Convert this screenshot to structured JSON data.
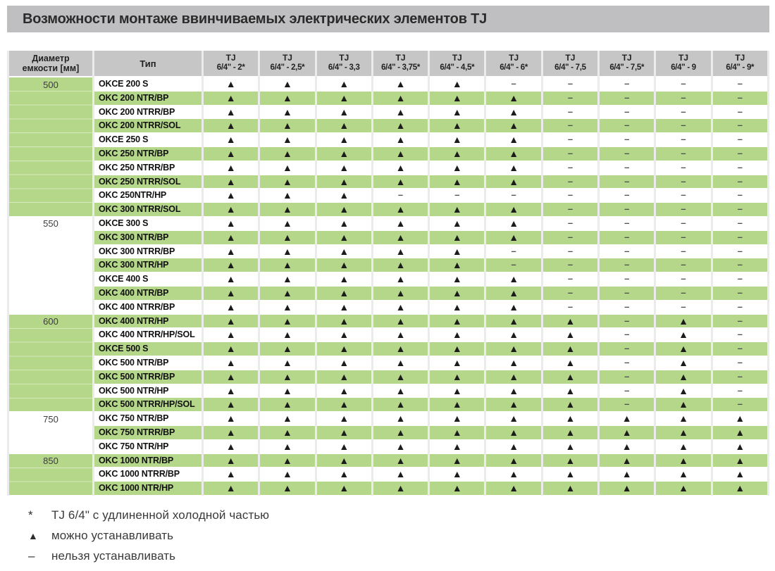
{
  "title": "Возможности монтаже ввинчиваемых электрических элементов TJ",
  "colors": {
    "row_green": "#b5d78a",
    "header_gray": "#c6c6c6",
    "title_bar_gray": "#bfbfc2",
    "triangle_black": "#1c1c1c",
    "dash_gray": "#4f4f4f"
  },
  "table": {
    "diameter_header": {
      "line1": "Диаметр",
      "line2": "емкости [мм]"
    },
    "type_header": "Тип",
    "tj_columns": [
      {
        "line1": "TJ",
        "line2": "6/4\" - 2*"
      },
      {
        "line1": "TJ",
        "line2": "6/4\" - 2,5*"
      },
      {
        "line1": "TJ",
        "line2": "6/4\" - 3,3"
      },
      {
        "line1": "TJ",
        "line2": "6/4\" - 3,75*"
      },
      {
        "line1": "TJ",
        "line2": "6/4\" - 4,5*"
      },
      {
        "line1": "TJ",
        "line2": "6/4\" - 6*"
      },
      {
        "line1": "TJ",
        "line2": "6/4\" - 7,5"
      },
      {
        "line1": "TJ",
        "line2": "6/4\" - 7,5*"
      },
      {
        "line1": "TJ",
        "line2": "6/4\" - 9"
      },
      {
        "line1": "TJ",
        "line2": "6/4\" - 9*"
      }
    ],
    "can_symbol": "▲",
    "cannot_symbol": "–",
    "groups": [
      {
        "diameter": "500",
        "green": true,
        "rows": [
          {
            "type": "OKCE 200 S",
            "cells": [
              "▲",
              "▲",
              "▲",
              "▲",
              "▲",
              "–",
              "–",
              "–",
              "–",
              "–"
            ]
          },
          {
            "type": "OKC 200 NTR/BP",
            "cells": [
              "▲",
              "▲",
              "▲",
              "▲",
              "▲",
              "▲",
              "–",
              "–",
              "–",
              "–"
            ]
          },
          {
            "type": "OKC 200 NTRR/BP",
            "cells": [
              "▲",
              "▲",
              "▲",
              "▲",
              "▲",
              "▲",
              "–",
              "–",
              "–",
              "–"
            ]
          },
          {
            "type": "OKC 200 NTRR/SOL",
            "cells": [
              "▲",
              "▲",
              "▲",
              "▲",
              "▲",
              "▲",
              "–",
              "–",
              "–",
              "–"
            ]
          },
          {
            "type": "OKCE 250 S",
            "cells": [
              "▲",
              "▲",
              "▲",
              "▲",
              "▲",
              "▲",
              "–",
              "–",
              "–",
              "–"
            ]
          },
          {
            "type": "OKC 250 NTR/BP",
            "cells": [
              "▲",
              "▲",
              "▲",
              "▲",
              "▲",
              "▲",
              "–",
              "–",
              "–",
              "–"
            ]
          },
          {
            "type": "OKC 250 NTRR/BP",
            "cells": [
              "▲",
              "▲",
              "▲",
              "▲",
              "▲",
              "▲",
              "–",
              "–",
              "–",
              "–"
            ]
          },
          {
            "type": "OKC 250 NTRR/SOL",
            "cells": [
              "▲",
              "▲",
              "▲",
              "▲",
              "▲",
              "▲",
              "–",
              "–",
              "–",
              "–"
            ]
          },
          {
            "type": "OKC 250NTR/HP",
            "cells": [
              "▲",
              "▲",
              "▲",
              "–",
              "–",
              "–",
              "–",
              "–",
              "–",
              "–"
            ]
          },
          {
            "type": "OKC 300 NTRR/SOL",
            "cells": [
              "▲",
              "▲",
              "▲",
              "▲",
              "▲",
              "▲",
              "–",
              "–",
              "–",
              "–"
            ]
          }
        ]
      },
      {
        "diameter": "550",
        "green": false,
        "rows": [
          {
            "type": "OKCE 300 S",
            "cells": [
              "▲",
              "▲",
              "▲",
              "▲",
              "▲",
              "▲",
              "–",
              "–",
              "–",
              "–"
            ]
          },
          {
            "type": "OKC 300 NTR/BP",
            "cells": [
              "▲",
              "▲",
              "▲",
              "▲",
              "▲",
              "▲",
              "–",
              "–",
              "–",
              "–"
            ]
          },
          {
            "type": "OKC 300 NTRR/BP",
            "cells": [
              "▲",
              "▲",
              "▲",
              "▲",
              "▲",
              "–",
              "–",
              "–",
              "–",
              "–"
            ]
          },
          {
            "type": "OKC 300 NTR/HP",
            "cells": [
              "▲",
              "▲",
              "▲",
              "▲",
              "▲",
              "–",
              "–",
              "–",
              "–",
              "–"
            ]
          },
          {
            "type": "OKCE 400 S",
            "cells": [
              "▲",
              "▲",
              "▲",
              "▲",
              "▲",
              "▲",
              "–",
              "–",
              "–",
              "–"
            ]
          },
          {
            "type": "OKC 400 NTR/BP",
            "cells": [
              "▲",
              "▲",
              "▲",
              "▲",
              "▲",
              "▲",
              "–",
              "–",
              "–",
              "–"
            ]
          },
          {
            "type": "OKC 400 NTRR/BP",
            "cells": [
              "▲",
              "▲",
              "▲",
              "▲",
              "▲",
              "▲",
              "–",
              "–",
              "–",
              "–"
            ]
          }
        ]
      },
      {
        "diameter": "600",
        "green": true,
        "rows": [
          {
            "type": "OKC 400 NTR/HP",
            "cells": [
              "▲",
              "▲",
              "▲",
              "▲",
              "▲",
              "▲",
              "▲",
              "–",
              "▲",
              "–"
            ]
          },
          {
            "type": "OKC 400 NTRR/HP/SOL",
            "cells": [
              "▲",
              "▲",
              "▲",
              "▲",
              "▲",
              "▲",
              "▲",
              "–",
              "▲",
              "–"
            ]
          },
          {
            "type": "OKCE 500 S",
            "cells": [
              "▲",
              "▲",
              "▲",
              "▲",
              "▲",
              "▲",
              "▲",
              "–",
              "▲",
              "–"
            ]
          },
          {
            "type": "OKC 500 NTR/BP",
            "cells": [
              "▲",
              "▲",
              "▲",
              "▲",
              "▲",
              "▲",
              "▲",
              "–",
              "▲",
              "–"
            ]
          },
          {
            "type": "OKC 500 NTRR/BP",
            "cells": [
              "▲",
              "▲",
              "▲",
              "▲",
              "▲",
              "▲",
              "▲",
              "–",
              "▲",
              "–"
            ]
          },
          {
            "type": "OKC 500 NTR/HP",
            "cells": [
              "▲",
              "▲",
              "▲",
              "▲",
              "▲",
              "▲",
              "▲",
              "–",
              "▲",
              "–"
            ]
          },
          {
            "type": "OKC 500 NTRR/HP/SOL",
            "cells": [
              "▲",
              "▲",
              "▲",
              "▲",
              "▲",
              "▲",
              "▲",
              "–",
              "▲",
              "–"
            ]
          }
        ]
      },
      {
        "diameter": "750",
        "green": false,
        "rows": [
          {
            "type": "OKC 750 NTR/BP",
            "cells": [
              "▲",
              "▲",
              "▲",
              "▲",
              "▲",
              "▲",
              "▲",
              "▲",
              "▲",
              "▲"
            ]
          },
          {
            "type": "OKC 750 NTRR/BP",
            "cells": [
              "▲",
              "▲",
              "▲",
              "▲",
              "▲",
              "▲",
              "▲",
              "▲",
              "▲",
              "▲"
            ]
          },
          {
            "type": "OKC 750 NTR/HP",
            "cells": [
              "▲",
              "▲",
              "▲",
              "▲",
              "▲",
              "▲",
              "▲",
              "▲",
              "▲",
              "▲"
            ]
          }
        ]
      },
      {
        "diameter": "850",
        "green": true,
        "rows": [
          {
            "type": "OKC 1000 NTR/BP",
            "cells": [
              "▲",
              "▲",
              "▲",
              "▲",
              "▲",
              "▲",
              "▲",
              "▲",
              "▲",
              "▲"
            ]
          },
          {
            "type": "OKC 1000 NTRR/BP",
            "cells": [
              "▲",
              "▲",
              "▲",
              "▲",
              "▲",
              "▲",
              "▲",
              "▲",
              "▲",
              "▲"
            ]
          },
          {
            "type": "OKC 1000 NTR/HP",
            "cells": [
              "▲",
              "▲",
              "▲",
              "▲",
              "▲",
              "▲",
              "▲",
              "▲",
              "▲",
              "▲"
            ]
          }
        ]
      }
    ]
  },
  "legend": {
    "items": [
      {
        "symbol": "*",
        "text": "TJ 6/4\" с удлиненной холодной частью"
      },
      {
        "symbol": "▲",
        "text": "можно устанавливать"
      },
      {
        "symbol": "–",
        "text": "нельзя устанавливать"
      }
    ]
  }
}
